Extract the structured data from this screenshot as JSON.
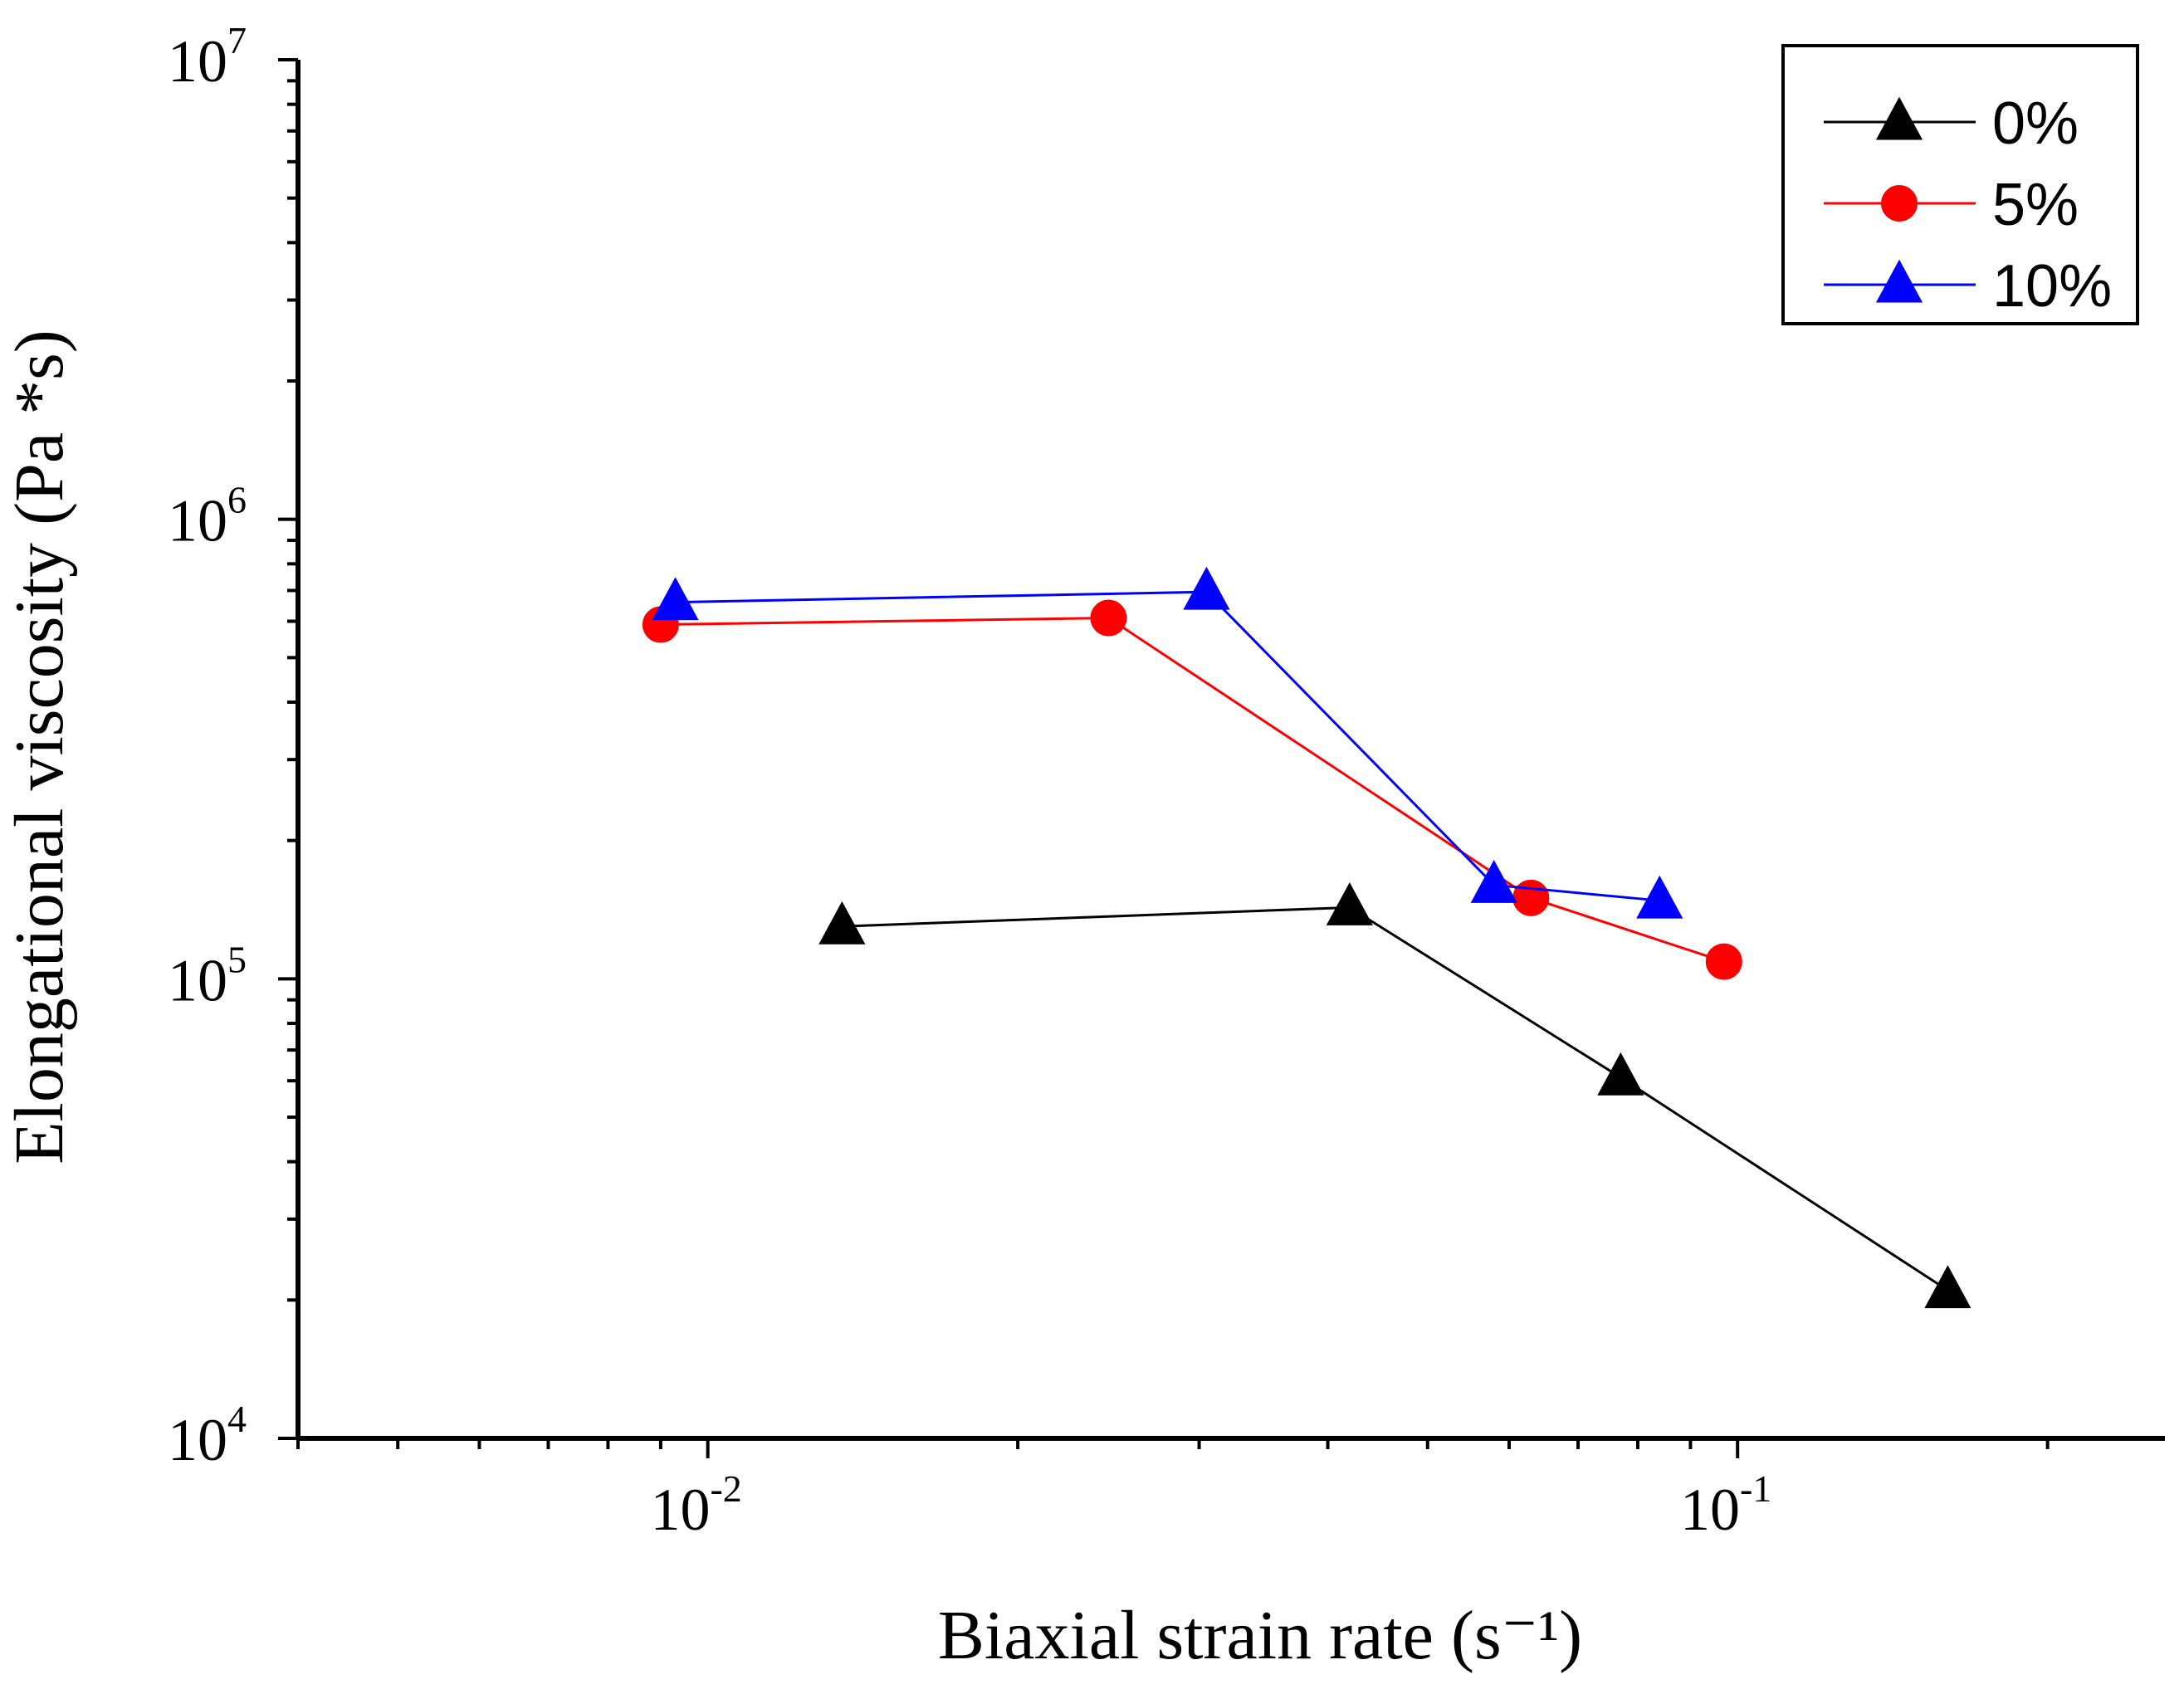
{
  "chart_data": {
    "type": "line",
    "title": "",
    "xlabel": "Biaxial strain rate (s⁻¹)",
    "ylabel": "Elongational viscosity (Pa *s)",
    "xscale": "log",
    "yscale": "log",
    "xlim": [
      0.004,
      0.26
    ],
    "ylim": [
      10000,
      10000000
    ],
    "x_ticks": [
      {
        "base": "10",
        "exp": "-2",
        "value": 0.01
      },
      {
        "base": "10",
        "exp": "-1",
        "value": 0.1
      }
    ],
    "y_ticks": [
      {
        "base": "10",
        "exp": "4",
        "value": 10000
      },
      {
        "base": "10",
        "exp": "5",
        "value": 100000
      },
      {
        "base": "10",
        "exp": "6",
        "value": 1000000
      },
      {
        "base": "10",
        "exp": "7",
        "value": 10000000
      }
    ],
    "grid": false,
    "legend_position": "top-right",
    "series": [
      {
        "name": "0%",
        "color": "#000000",
        "marker": "triangle",
        "x": [
          0.0135,
          0.042,
          0.077,
          0.16
        ],
        "y": [
          130000,
          143000,
          61000,
          21000
        ]
      },
      {
        "name": "5%",
        "color": "#ff0000",
        "marker": "circle",
        "x": [
          0.009,
          0.0245,
          0.063,
          0.097
        ],
        "y": [
          590000,
          610000,
          150000,
          109000
        ]
      },
      {
        "name": "10%",
        "color": "#0000ff",
        "marker": "triangle",
        "x": [
          0.0093,
          0.0305,
          0.058,
          0.084
        ],
        "y": [
          660000,
          695000,
          160000,
          148000
        ]
      }
    ]
  }
}
